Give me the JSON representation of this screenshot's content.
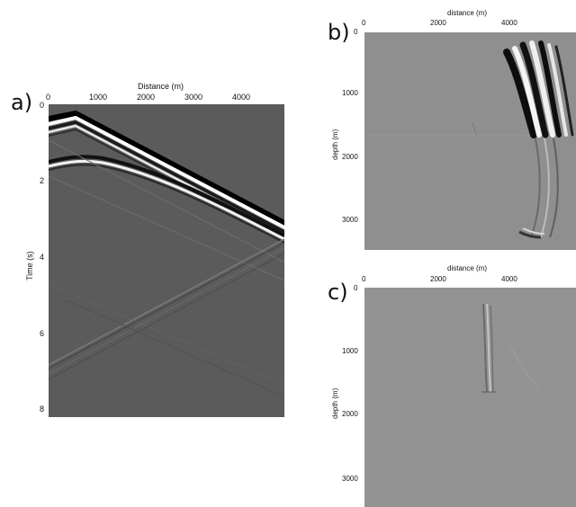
{
  "panel_a": {
    "letter": "a)",
    "x_title": "Distance (m)",
    "y_title": "Time (s)",
    "x_ticks": [
      "0",
      "1000",
      "2000",
      "3000",
      "4000"
    ],
    "y_ticks": [
      "0",
      "2",
      "4",
      "6",
      "8"
    ]
  },
  "panel_b": {
    "letter": "b)",
    "x_title": "distance (m)",
    "y_title": "depth (m)",
    "x_ticks": [
      "0",
      "2000",
      "4000"
    ],
    "y_ticks": [
      "0",
      "1000",
      "2000",
      "3000"
    ]
  },
  "panel_c": {
    "letter": "c)",
    "x_title": "distance (m)",
    "y_title": "depth (m)",
    "x_ticks": [
      "0",
      "2000",
      "4000"
    ],
    "y_ticks": [
      "0",
      "1000",
      "2000",
      "3000"
    ]
  }
}
